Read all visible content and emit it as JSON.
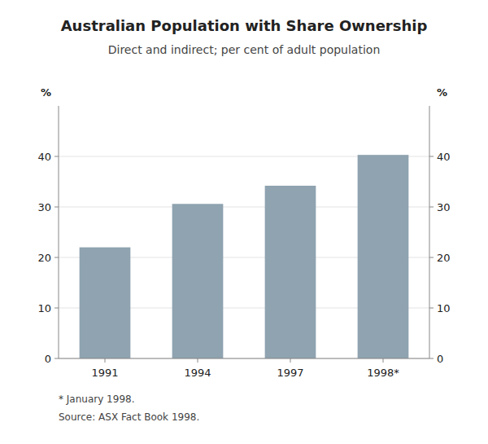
{
  "chart_data": {
    "type": "bar",
    "title": "Australian Population with Share Ownership",
    "subtitle": "Direct and indirect; per cent of adult population",
    "categories": [
      "1991",
      "1994",
      "1997",
      "1998*"
    ],
    "values": [
      22,
      30.6,
      34.2,
      40.3
    ],
    "color": "#8fa3b0",
    "ylim": [
      0,
      50
    ],
    "yticks": [
      0,
      10,
      20,
      30,
      40
    ],
    "y2lim": [
      0,
      50
    ],
    "y2ticks": [
      0,
      10,
      20,
      30,
      40
    ],
    "ylabel": "%",
    "y2label": "%",
    "annotations": [
      "* January 1998.",
      "Source: ASX Fact Book 1998."
    ],
    "grid": true
  }
}
